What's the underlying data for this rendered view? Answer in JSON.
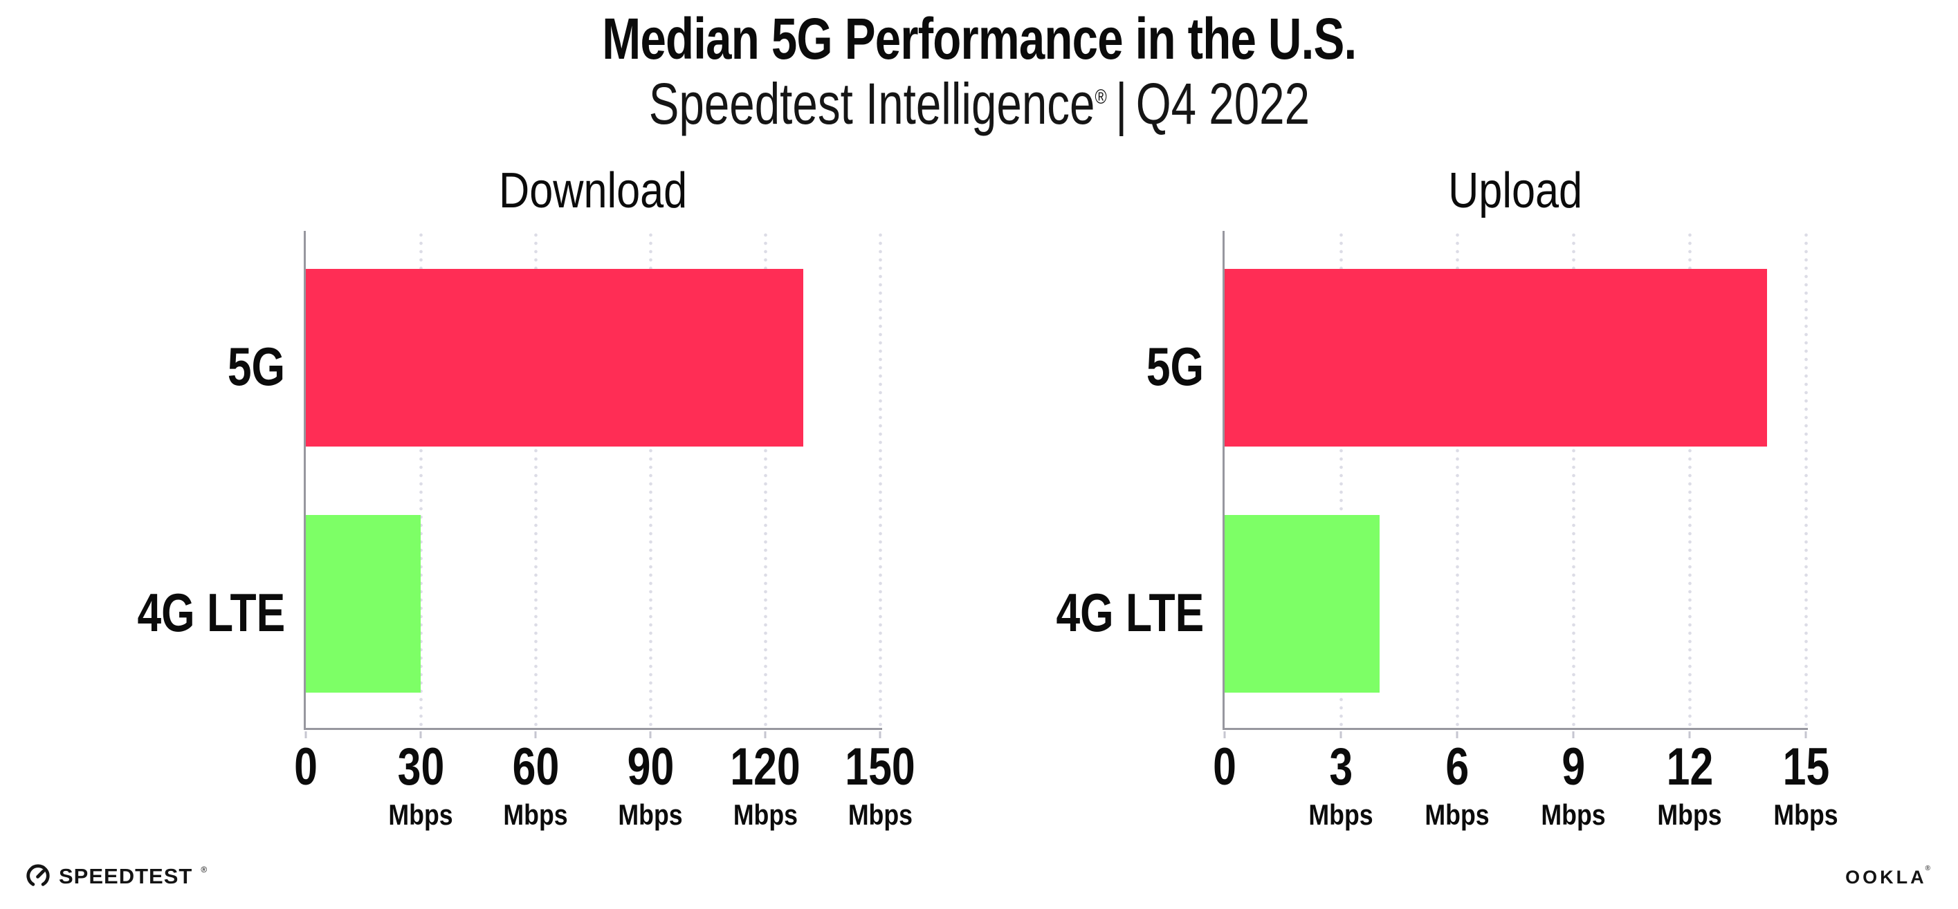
{
  "title": "Median 5G Performance in the U.S.",
  "subtitle": {
    "brand": "Speedtest Intelligence",
    "reg": "®",
    "sep": "|",
    "period": "Q4 2022"
  },
  "colors": {
    "bar_5g": "#FF2D55",
    "bar_4g_lte": "#7DFF66",
    "gridline": "#DCDCE6",
    "axis": "#97979F",
    "tick_mark": "#C6C6D0",
    "text": "#0B0B0B"
  },
  "chart_data": [
    {
      "type": "bar",
      "orientation": "horizontal",
      "title": "Download",
      "categories": [
        "5G",
        "4G LTE"
      ],
      "values": [
        130,
        30
      ],
      "unit": "Mbps",
      "xlim": [
        0,
        150
      ],
      "xticks": [
        0,
        30,
        60,
        90,
        120,
        150
      ],
      "xtick_unit_label": "Mbps",
      "grid": "dotted-vertical",
      "legend": "none",
      "bar_colors": [
        "#FF2D55",
        "#7DFF66"
      ]
    },
    {
      "type": "bar",
      "orientation": "horizontal",
      "title": "Upload",
      "categories": [
        "5G",
        "4G LTE"
      ],
      "values": [
        14,
        4
      ],
      "unit": "Mbps",
      "xlim": [
        0,
        15
      ],
      "xticks": [
        0,
        3,
        6,
        9,
        12,
        15
      ],
      "xtick_unit_label": "Mbps",
      "grid": "dotted-vertical",
      "legend": "none",
      "bar_colors": [
        "#FF2D55",
        "#7DFF66"
      ]
    }
  ],
  "footer": {
    "speedtest": {
      "label": "SPEEDTEST",
      "trademark": "®"
    },
    "ookla": {
      "label": "OOKLA",
      "trademark": "®"
    }
  }
}
